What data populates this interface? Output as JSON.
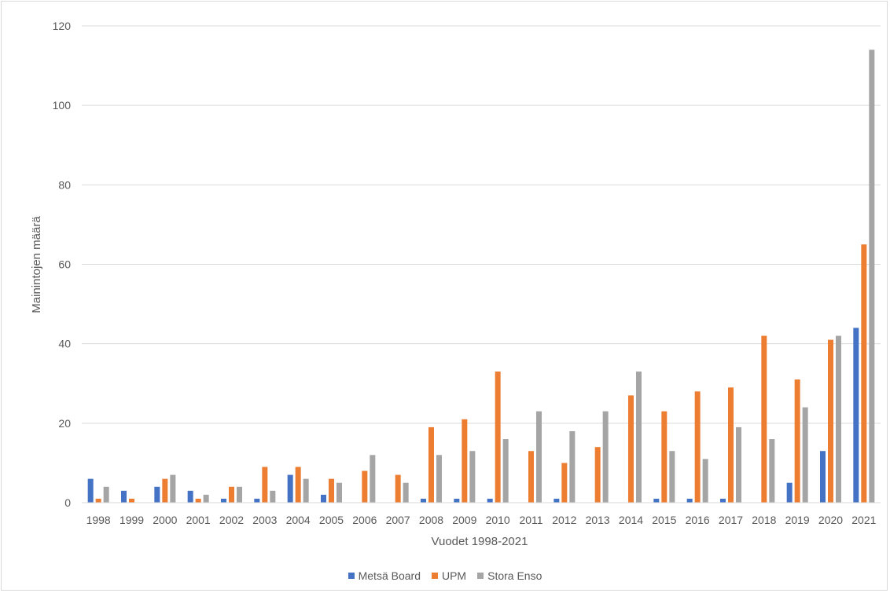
{
  "chart_data": {
    "type": "bar",
    "title": "",
    "xlabel": "Vuodet 1998-2021",
    "ylabel": "Mainintojen määrä",
    "ylim": [
      0,
      120
    ],
    "yticks": [
      0,
      20,
      40,
      60,
      80,
      100,
      120
    ],
    "grid": true,
    "legend_position": "bottom",
    "categories": [
      "1998",
      "1999",
      "2000",
      "2001",
      "2002",
      "2003",
      "2004",
      "2005",
      "2006",
      "2007",
      "2008",
      "2009",
      "2010",
      "2011",
      "2012",
      "2013",
      "2014",
      "2015",
      "2016",
      "2017",
      "2018",
      "2019",
      "2020",
      "2021"
    ],
    "series": [
      {
        "name": "Metsä Board",
        "color": "#4472c4",
        "values": [
          6,
          3,
          4,
          3,
          1,
          1,
          7,
          2,
          0,
          0,
          1,
          1,
          1,
          0,
          1,
          0,
          0,
          1,
          1,
          1,
          0,
          5,
          13,
          44
        ]
      },
      {
        "name": "UPM",
        "color": "#ed7d31",
        "values": [
          1,
          1,
          6,
          1,
          4,
          9,
          9,
          6,
          8,
          7,
          19,
          21,
          33,
          13,
          10,
          14,
          27,
          23,
          28,
          29,
          42,
          31,
          41,
          65
        ]
      },
      {
        "name": "Stora Enso",
        "color": "#a5a5a5",
        "values": [
          4,
          0,
          7,
          2,
          4,
          3,
          6,
          5,
          12,
          5,
          12,
          13,
          16,
          23,
          18,
          23,
          33,
          13,
          11,
          19,
          16,
          24,
          42,
          114
        ]
      }
    ]
  }
}
